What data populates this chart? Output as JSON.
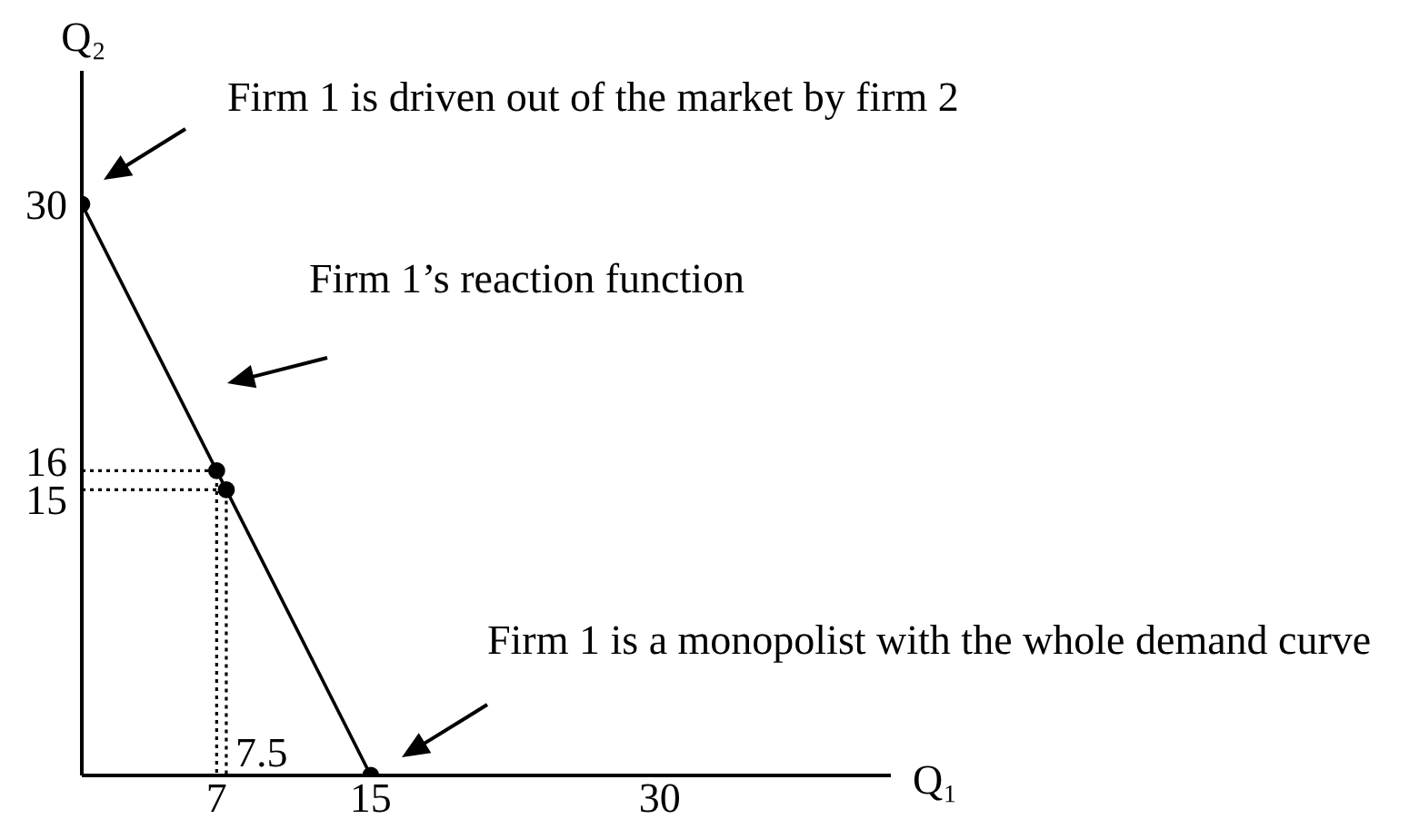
{
  "chart_data": {
    "type": "line",
    "xlabel": "Q₁",
    "ylabel": "Q₂",
    "xlim": [
      0,
      42
    ],
    "ylim": [
      0,
      37
    ],
    "xticks": [
      7,
      15,
      30
    ],
    "yticks": [
      15,
      16,
      30
    ],
    "marker": "circle",
    "line_style": "solid",
    "series": [
      {
        "color": "#000000",
        "x": [
          0,
          7,
          7
        ],
        "values": [
          16,
          16,
          0
        ],
        "line_style": "dotted",
        "marker": "none"
      },
      {
        "color": "#000000",
        "x": [
          0,
          7.5,
          7.5
        ],
        "values": [
          15,
          15,
          0
        ],
        "line_style": "dotted",
        "marker": "none"
      },
      {
        "color": "#000000",
        "x": [
          0,
          7,
          7.5,
          15
        ],
        "values": [
          30,
          16,
          15,
          0
        ]
      }
    ],
    "annotations": [
      "Firm 1 is driven out of the market by firm 2",
      "Firm 1’s reaction function",
      "Firm 1 is a monopolist with the whole demand curve",
      {
        "text": "7.5",
        "x": 7.5,
        "y": 0
      }
    ]
  }
}
